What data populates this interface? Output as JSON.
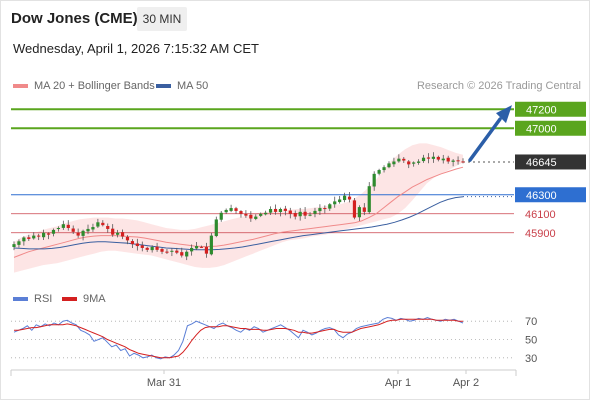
{
  "header": {
    "instrument": "Dow Jones (CME)",
    "timeframe": "30 MIN",
    "datetime": "Wednesday, April 1, 2026 7:15:32 AM CET"
  },
  "legend": {
    "items": [
      {
        "label": "MA 20 + Bollinger Bands",
        "color": "#f08a8a"
      },
      {
        "label": "MA 50",
        "color": "#3a5fa0"
      }
    ],
    "credit": "Research © 2026 Trading Central"
  },
  "rsi_legend": {
    "items": [
      {
        "label": "RSI",
        "color": "#5b7fd6"
      },
      {
        "label": "9MA",
        "color": "#d42020"
      }
    ]
  },
  "colors": {
    "up": "#2e8b2e",
    "down": "#d42020",
    "bb_fill": "#fde1e1",
    "ma20": "#f08a8a",
    "ma50": "#3a5fa0",
    "resistance": "#5aa51e",
    "support_blue": "#2e6fd1",
    "support_red": "#c9404a",
    "price_tag": "#333333",
    "arrow": "#2b5ea8"
  },
  "chart_data": {
    "type": "candlestick",
    "ylim": [
      45350,
      47350
    ],
    "levels": [
      {
        "label": "47200",
        "value": 47200,
        "kind": "resistance"
      },
      {
        "label": "47000",
        "value": 47000,
        "kind": "resistance"
      },
      {
        "label": "46645",
        "value": 46645,
        "kind": "last"
      },
      {
        "label": "46300",
        "value": 46300,
        "kind": "pivot"
      },
      {
        "label": "46100",
        "value": 46100,
        "kind": "support"
      },
      {
        "label": "45900",
        "value": 45900,
        "kind": "support"
      }
    ],
    "x_ticks": [
      "Mar 31",
      "Apr 1",
      "Apr 2"
    ],
    "close": [
      45780,
      45810,
      45850,
      45835,
      45870,
      45860,
      45900,
      45880,
      45930,
      45950,
      45990,
      45950,
      45910,
      45870,
      45920,
      45940,
      45960,
      46010,
      45980,
      45940,
      45880,
      45900,
      45860,
      45820,
      45780,
      45760,
      45740,
      45720,
      45750,
      45720,
      45700,
      45690,
      45710,
      45690,
      45660,
      45700,
      45740,
      45760,
      45750,
      45680,
      45870,
      46040,
      46110,
      46140,
      46160,
      46130,
      46100,
      46080,
      46050,
      46070,
      46100,
      46110,
      46150,
      46120,
      46150,
      46130,
      46100,
      46070,
      46120,
      46080,
      46090,
      46130,
      46160,
      46150,
      46200,
      46230,
      46250,
      46290,
      46250,
      46060,
      46170,
      46120,
      46390,
      46520,
      46560,
      46590,
      46630,
      46650,
      46680,
      46660,
      46620,
      46640,
      46650,
      46690,
      46680,
      46700,
      46670,
      46680,
      46650,
      46660,
      46655,
      46645
    ],
    "bb_upper": [
      45800,
      45850,
      45880,
      45900,
      45930,
      45950,
      45970,
      46000,
      46020,
      46040,
      46050,
      46060,
      46060,
      46060,
      46050,
      46050,
      46040,
      46030,
      46010,
      45990,
      45970,
      45950,
      45940,
      45930,
      45930,
      45940,
      45960,
      45980,
      46000,
      46020,
      46040,
      46060,
      46080,
      46100,
      46110,
      46120,
      46130,
      46140,
      46140,
      46150,
      46150,
      46160,
      46170,
      46180,
      46190,
      46200,
      46220,
      46260,
      46310,
      46380,
      46460,
      46560,
      46650,
      46720,
      46780,
      46820,
      46840,
      46840,
      46820,
      46800,
      46770,
      46740,
      46720
    ],
    "bb_lower": [
      45480,
      45500,
      45520,
      45540,
      45560,
      45570,
      45580,
      45600,
      45620,
      45640,
      45660,
      45680,
      45700,
      45710,
      45710,
      45700,
      45690,
      45680,
      45670,
      45660,
      45640,
      45620,
      45600,
      45580,
      45560,
      45540,
      45530,
      45530,
      45540,
      45560,
      45590,
      45620,
      45650,
      45680,
      45710,
      45740,
      45770,
      45800,
      45820,
      45830,
      45840,
      45860,
      45870,
      45880,
      45900,
      45920,
      45940,
      45960,
      45980,
      46000,
      46020,
      46040,
      46060,
      46100,
      46160,
      46240,
      46330,
      46420,
      46480,
      46520,
      46560,
      46600,
      46640
    ],
    "ma20": [
      45640,
      45670,
      45700,
      45720,
      45740,
      45760,
      45780,
      45800,
      45820,
      45840,
      45855,
      45865,
      45870,
      45870,
      45870,
      45865,
      45860,
      45855,
      45845,
      45830,
      45815,
      45800,
      45790,
      45780,
      45770,
      45760,
      45755,
      45755,
      45760,
      45770,
      45785,
      45800,
      45815,
      45830,
      45850,
      45870,
      45890,
      45905,
      45915,
      45925,
      45935,
      45945,
      45955,
      45965,
      45975,
      45985,
      45995,
      46005,
      46025,
      46060,
      46100,
      46160,
      46220,
      46280,
      46330,
      46380,
      46420,
      46460,
      46490,
      46520,
      46545,
      46570,
      46590
    ],
    "ma50": [
      45740,
      45735,
      45730,
      45730,
      45730,
      45735,
      45745,
      45760,
      45775,
      45790,
      45800,
      45805,
      45805,
      45800,
      45795,
      45790,
      45780,
      45770,
      45760,
      45750,
      45740,
      45735,
      45730,
      45725,
      45722,
      45720,
      45722,
      45725,
      45732,
      45740,
      45750,
      45765,
      45780,
      45795,
      45810,
      45825,
      45840,
      45855,
      45870,
      45880,
      45890,
      45900,
      45910,
      45920,
      45930,
      45940,
      45950,
      45960,
      45975,
      45990,
      46010,
      46035,
      46065,
      46100,
      46140,
      46180,
      46220,
      46250,
      46270,
      46280
    ],
    "rsi": {
      "levels": [
        "70",
        "50",
        "30"
      ],
      "ylim": [
        20,
        80
      ],
      "rsi": [
        58,
        60,
        62,
        65,
        60,
        66,
        64,
        67,
        65,
        68,
        66,
        70,
        71,
        68,
        66,
        60,
        58,
        55,
        48,
        50,
        52,
        47,
        42,
        44,
        38,
        40,
        32,
        35,
        33,
        30,
        31,
        33,
        30,
        29,
        31,
        30,
        33,
        38,
        48,
        65,
        67,
        70,
        68,
        66,
        64,
        62,
        66,
        68,
        65,
        63,
        60,
        58,
        62,
        60,
        64,
        62,
        58,
        60,
        62,
        64,
        66,
        63,
        60,
        56,
        52,
        60,
        58,
        55,
        57,
        60,
        62,
        63,
        61,
        55,
        52,
        56,
        58,
        62,
        64,
        65,
        66,
        67,
        68,
        72,
        74,
        73,
        71,
        73,
        72,
        70,
        71,
        73,
        72,
        74,
        72,
        71,
        70,
        72,
        71,
        72,
        70,
        68
      ],
      "ma9": [
        60,
        60,
        61,
        62,
        63,
        63,
        64,
        65,
        66,
        66,
        66,
        66,
        67,
        66,
        65,
        63,
        61,
        59,
        57,
        55,
        53,
        50,
        48,
        46,
        44,
        42,
        39,
        37,
        35,
        34,
        33,
        32,
        31,
        30,
        30,
        30,
        31,
        32,
        36,
        42,
        49,
        55,
        60,
        63,
        64,
        64,
        64,
        65,
        65,
        64,
        63,
        62,
        62,
        61,
        61,
        61,
        60,
        60,
        61,
        62,
        62,
        62,
        61,
        60,
        58,
        58,
        57,
        57,
        58,
        59,
        60,
        61,
        61,
        59,
        58,
        58,
        58,
        60,
        62,
        63,
        64,
        65,
        66,
        68,
        70,
        71,
        71,
        72,
        72,
        72,
        72,
        72,
        72,
        72,
        72,
        71,
        71,
        71,
        71,
        71,
        70,
        70
      ]
    }
  }
}
